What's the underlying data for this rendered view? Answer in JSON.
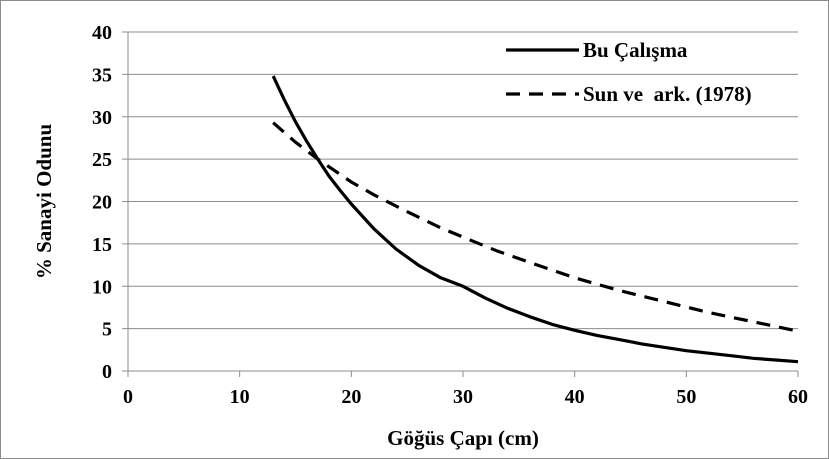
{
  "chart_data": {
    "type": "line",
    "title": "",
    "xlabel": "Göğüs Çapı (cm)",
    "ylabel": "% Sanayi Odunu",
    "xlim": [
      0,
      60
    ],
    "ylim": [
      0,
      40
    ],
    "xticks": [
      "0",
      "10",
      "20",
      "30",
      "40",
      "50",
      "60"
    ],
    "yticks": [
      "0",
      "5",
      "10",
      "15",
      "20",
      "25",
      "30",
      "35",
      "40"
    ],
    "grid": "horizontal",
    "legend_position": "top-right",
    "series": [
      {
        "name": "Bu Çalışma",
        "style": "solid",
        "color": "#000000",
        "x": [
          13,
          14,
          15,
          16,
          17,
          18,
          19,
          20,
          22,
          24,
          26,
          28,
          30,
          32,
          34,
          36,
          38,
          40,
          42,
          44,
          46,
          48,
          50,
          52,
          54,
          56,
          58,
          60
        ],
        "y": [
          34.8,
          32.0,
          29.4,
          27.1,
          25.0,
          23.0,
          21.3,
          19.7,
          16.8,
          14.4,
          12.5,
          11.0,
          10.0,
          8.6,
          7.4,
          6.4,
          5.5,
          4.8,
          4.2,
          3.7,
          3.2,
          2.8,
          2.4,
          2.1,
          1.8,
          1.5,
          1.3,
          1.1
        ]
      },
      {
        "name": "Sun ve  ark. (1978)",
        "style": "dashed",
        "color": "#000000",
        "x": [
          13,
          15,
          17,
          19,
          20,
          22,
          25,
          28,
          30,
          33,
          36,
          40,
          44,
          48,
          52,
          56,
          60
        ],
        "y": [
          29.3,
          27.0,
          25.0,
          23.2,
          22.3,
          20.8,
          18.8,
          16.9,
          15.8,
          14.2,
          12.8,
          11.0,
          9.5,
          8.2,
          6.9,
          5.8,
          4.7
        ]
      }
    ]
  }
}
